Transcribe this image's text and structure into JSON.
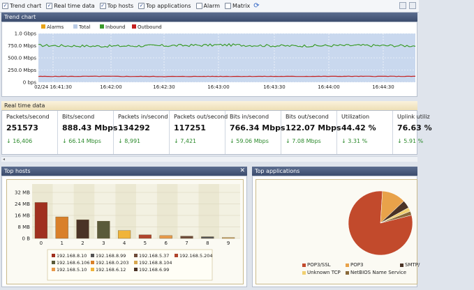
{
  "toolbar": {
    "items": [
      {
        "label": "Trend chart",
        "checked": true
      },
      {
        "label": "Real time data",
        "checked": true
      },
      {
        "label": "Top hosts",
        "checked": true
      },
      {
        "label": "Top applications",
        "checked": true
      },
      {
        "label": "Alarm",
        "checked": false
      },
      {
        "label": "Matrix",
        "checked": false
      }
    ],
    "refresh_icon": "refresh-icon"
  },
  "trend": {
    "header": "Trend chart",
    "legend": [
      {
        "name": "Alarms",
        "color": "#e8a317"
      },
      {
        "name": "Total",
        "color": "#b9cbe6"
      },
      {
        "name": "Inbound",
        "color": "#3a9a2b"
      },
      {
        "name": "Outbound",
        "color": "#c42020"
      }
    ],
    "y_ticks": [
      "1.0 Gbps",
      "750.0 Mbps",
      "500.0 Mbps",
      "250.0 Mbps",
      "0 bps"
    ],
    "x_ticks": [
      "02/24 16:41:30",
      "16:42:00",
      "16:42:30",
      "16:43:00",
      "16:43:30",
      "16:44:00",
      "16:44:30"
    ]
  },
  "chart_data": {
    "type": "area",
    "ylabel": "",
    "ylim": [
      0,
      1000
    ],
    "y_unit": "Mbps",
    "x": [
      "02/24 16:41:30",
      "16:42:00",
      "16:42:30",
      "16:43:00",
      "16:43:30",
      "16:44:00",
      "16:44:30"
    ],
    "series": [
      {
        "name": "Total",
        "values": [
          1000,
          1000,
          1000,
          1000,
          1000,
          1000,
          1000
        ]
      },
      {
        "name": "Inbound",
        "values": [
          755,
          740,
          750,
          765,
          745,
          755,
          748
        ]
      },
      {
        "name": "Outbound",
        "values": [
          120,
          122,
          118,
          121,
          120,
          122,
          121
        ]
      }
    ]
  },
  "realtime": {
    "header": "Real time data",
    "cells": [
      {
        "label": "Packets/second",
        "value": "251573",
        "delta": "↓ 16,406"
      },
      {
        "label": "Bits/second",
        "value": "888.43 Mbps",
        "delta": "↓ 66.14 Mbps"
      },
      {
        "label": "Packets in/second",
        "value": "134292",
        "delta": "↓ 8,991"
      },
      {
        "label": "Packets out/second",
        "value": "117251",
        "delta": "↓ 7,421"
      },
      {
        "label": "Bits in/second",
        "value": "766.34 Mbps",
        "delta": "↓ 59.06 Mbps"
      },
      {
        "label": "Bits out/second",
        "value": "122.07 Mbps",
        "delta": "↓ 7.08 Mbps"
      },
      {
        "label": "Utilization",
        "value": "44.42 %",
        "delta": "↓ 3.31 %"
      },
      {
        "label": "Uplink utiliz",
        "value": "76.63 %",
        "delta": "↓ 5.91 %"
      }
    ]
  },
  "hosts": {
    "header": "Top hosts",
    "y_ticks": [
      "32 MB",
      "24 MB",
      "16 MB",
      "8 MB",
      "0 B"
    ],
    "bars": [
      {
        "label": "0",
        "value": 25,
        "color": "#a0301f",
        "host": "192.168.8.10"
      },
      {
        "label": "1",
        "value": 15,
        "color": "#d9802a",
        "host": "192.168.0.203"
      },
      {
        "label": "2",
        "value": 13,
        "color": "#4a3326",
        "host": "192.168.6.99"
      },
      {
        "label": "3",
        "value": 12,
        "color": "#5a5a3a",
        "host": "192.168.6.106"
      },
      {
        "label": "4",
        "value": 5.5,
        "color": "#f0b43a",
        "host": "192.168.6.12"
      },
      {
        "label": "5",
        "value": 2.5,
        "color": "#b0452d",
        "host": "192.168.5.204"
      },
      {
        "label": "6",
        "value": 2.0,
        "color": "#e89a4a",
        "host": "192.168.5.10"
      },
      {
        "label": "7",
        "value": 1.6,
        "color": "#6e4b3a",
        "host": "192.168.5.37"
      },
      {
        "label": "8",
        "value": 1.2,
        "color": "#555555",
        "host": "192.168.8.99"
      },
      {
        "label": "9",
        "value": 0.6,
        "color": "#d8a850",
        "host": "192.168.8.104"
      }
    ]
  },
  "apps": {
    "header": "Top applications",
    "slices": [
      {
        "name": "POP3/SSL",
        "value": 80,
        "color": "#c24a2c"
      },
      {
        "name": "POP3",
        "value": 12,
        "color": "#e8a24a"
      },
      {
        "name": "SMTP/",
        "value": 4,
        "color": "#4a3326"
      },
      {
        "name": "Unknown TCP",
        "value": 2,
        "color": "#f0d070"
      },
      {
        "name": "NetBIOS Name Service",
        "value": 2,
        "color": "#8a6a3a"
      }
    ]
  }
}
